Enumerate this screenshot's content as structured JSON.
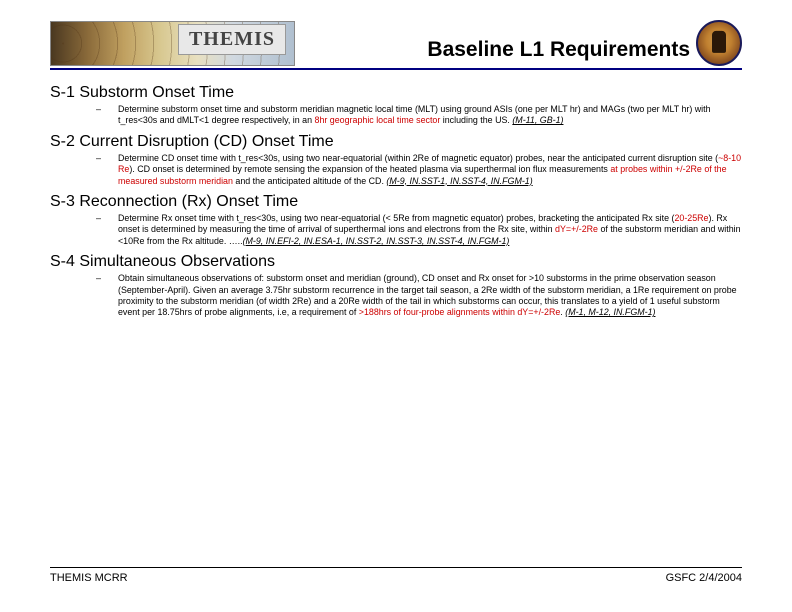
{
  "header": {
    "logo_text": "THEMIS",
    "title": "Baseline L1 Requirements"
  },
  "sections": {
    "s1": {
      "heading": "S-1 Substorm Onset Time",
      "body_pre": "Determine substorm onset time and substorm meridian magnetic local time (MLT) using ground ASIs (one per MLT hr) and MAGs (two per MLT hr) with t_res<30s and dMLT<1 degree respectively, in an ",
      "body_red": "8hr geographic local time sector",
      "body_post": " including the US. ",
      "ref": "(M-11, GB-1)"
    },
    "s2": {
      "heading": "S-2 Current Disruption (CD) Onset Time",
      "body_pre": "Determine CD onset time with t_res<30s, using two near-equatorial (within 2Re of magnetic equator) probes, near the anticipated current disruption site (",
      "body_red1": "~8-10 Re",
      "body_mid": "). CD onset is determined by remote sensing the expansion of the heated plasma via superthermal ion flux measurements ",
      "body_red2": "at probes within +/-2Re of the measured substorm meridian",
      "body_post": " and the anticipated altitude of the CD. ",
      "ref": "(M-9, IN.SST-1, IN.SST-4, IN.FGM-1)"
    },
    "s3": {
      "heading": "S-3 Reconnection (Rx) Onset Time",
      "body_pre": "Determine Rx onset time with t_res<30s, using two near-equatorial (< 5Re from magnetic equator) probes, bracketing the anticipated Rx site (",
      "body_red1": "20-25Re",
      "body_mid": "). Rx onset is determined by measuring the time of arrival of superthermal ions and electrons from the Rx site, within ",
      "body_red2": "dY=+/-2Re",
      "body_post": " of the substorm meridian and within <10Re from the Rx altitude. …..",
      "ref": "(M-9, IN.EFI-2, IN.ESA-1, IN.SST-2, IN.SST-3, IN.SST-4, IN.FGM-1)"
    },
    "s4": {
      "heading": "S-4 Simultaneous Observations",
      "body_pre": "Obtain simultaneous observations of: substorm onset and meridian (ground), CD onset and Rx onset for >10 substorms in the prime observation season (September-April). Given an average 3.75hr substorm recurrence in the target tail season, a 2Re width of the substorm meridian, a 1Re requirement on probe proximity to the substorm meridian (of width 2Re) and a 20Re width of the tail in which substorms can occur, this translates to a yield of 1 useful substorm event per 18.75hrs of probe alignments, i.e, a requirement of ",
      "body_red": ">188hrs of four-probe alignments within dY=+/-2Re",
      "body_post": ". ",
      "ref": "(M-1, M-12, IN.FGM-1)"
    }
  },
  "footer": {
    "left": "THEMIS MCRR",
    "right": "GSFC 2/4/2004"
  }
}
